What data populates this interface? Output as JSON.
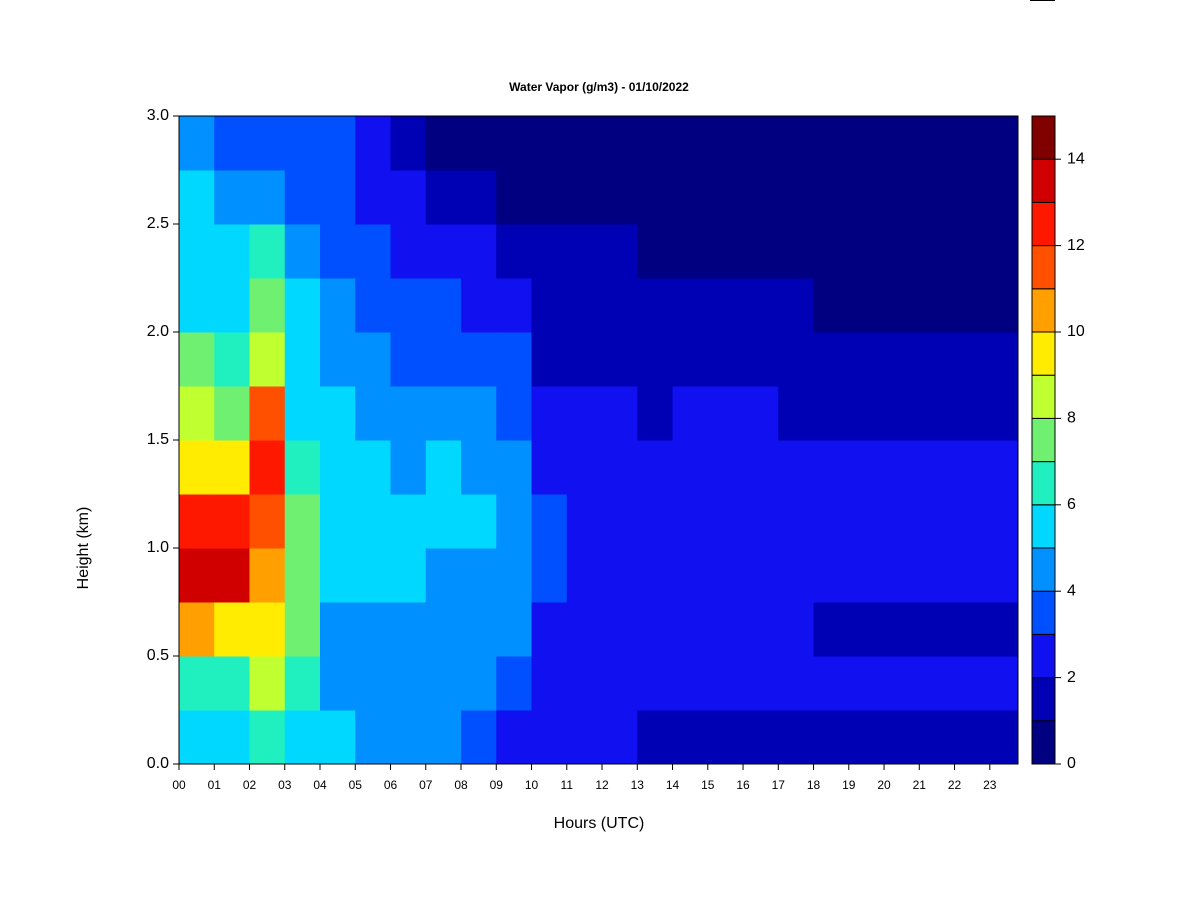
{
  "chart_data": {
    "type": "contour",
    "title": "Water Vapor (g/m3) - 01/10/2022",
    "xlabel": "Hours (UTC)",
    "ylabel": "Height (km)",
    "xlim": [
      0,
      23.8
    ],
    "ylim": [
      0,
      3
    ],
    "xticks": [
      {
        "value": 0,
        "label": "00"
      },
      {
        "value": 1,
        "label": "01"
      },
      {
        "value": 2,
        "label": "02"
      },
      {
        "value": 3,
        "label": "03"
      },
      {
        "value": 4,
        "label": "04"
      },
      {
        "value": 5,
        "label": "05"
      },
      {
        "value": 6,
        "label": "06"
      },
      {
        "value": 7,
        "label": "07"
      },
      {
        "value": 8,
        "label": "08"
      },
      {
        "value": 9,
        "label": "09"
      },
      {
        "value": 10,
        "label": "10"
      },
      {
        "value": 11,
        "label": "11"
      },
      {
        "value": 12,
        "label": "12"
      },
      {
        "value": 13,
        "label": "13"
      },
      {
        "value": 14,
        "label": "14"
      },
      {
        "value": 15,
        "label": "15"
      },
      {
        "value": 16,
        "label": "16"
      },
      {
        "value": 17,
        "label": "17"
      },
      {
        "value": 18,
        "label": "18"
      },
      {
        "value": 19,
        "label": "19"
      },
      {
        "value": 20,
        "label": "20"
      },
      {
        "value": 21,
        "label": "21"
      },
      {
        "value": 22,
        "label": "22"
      },
      {
        "value": 23,
        "label": "23"
      }
    ],
    "yticks": [
      {
        "value": 0,
        "label": "0.0"
      },
      0.5,
      {
        "value": 1,
        "label": "1.0"
      },
      1.5,
      {
        "value": 2,
        "label": "2.0"
      },
      2.5,
      {
        "value": 3,
        "label": "3.0"
      }
    ],
    "x": [
      0,
      1,
      2,
      3,
      4,
      5,
      6,
      7,
      8,
      9,
      10,
      11,
      12,
      13,
      14,
      15,
      16,
      17,
      18,
      19,
      20,
      21,
      22,
      23
    ],
    "y": [
      0,
      0.25,
      0.5,
      0.75,
      1,
      1.25,
      1.5,
      1.75,
      2,
      2.25,
      2.5,
      2.75
    ],
    "z": [
      [
        5.5,
        6.5,
        10.5,
        13.5,
        12.5,
        9.5,
        8.5,
        7.5,
        5.5,
        5.5,
        5.5,
        4.5
      ],
      [
        5.5,
        6.5,
        9.5,
        13.5,
        12.5,
        9.5,
        7.5,
        6.5,
        5.5,
        5.5,
        4.5,
        3.5
      ],
      [
        6.5,
        8.5,
        9.5,
        10.5,
        11.5,
        12.5,
        11.5,
        8.5,
        7.5,
        6.5,
        4.5,
        3.5
      ],
      [
        5.5,
        6.5,
        7.5,
        7.5,
        7.5,
        6.5,
        5.5,
        5.5,
        5.5,
        4.5,
        3.5,
        3.5
      ],
      [
        5.5,
        4.5,
        4.5,
        5.5,
        5.5,
        5.5,
        5.5,
        4.5,
        4.5,
        3.5,
        3.5,
        3.5
      ],
      [
        4.5,
        4.5,
        4.5,
        5.5,
        5.5,
        5.5,
        4.5,
        4.5,
        3.5,
        3.5,
        2.5,
        2.5
      ],
      [
        4.5,
        4.5,
        4.5,
        5.5,
        5.5,
        4.5,
        4.5,
        3.5,
        3.5,
        2.5,
        2.5,
        1.5
      ],
      [
        4.5,
        4.5,
        4.5,
        4.5,
        5.5,
        5.5,
        4.5,
        3.5,
        3.5,
        2.5,
        1.5,
        0.5
      ],
      [
        3.5,
        4.5,
        4.5,
        4.5,
        5.5,
        4.5,
        4.5,
        3.5,
        2.5,
        2.5,
        1.5,
        0.5
      ],
      [
        2.5,
        3.5,
        4.5,
        4.5,
        4.5,
        4.5,
        3.5,
        3.5,
        2.5,
        1.5,
        0.5,
        0.5
      ],
      [
        2.5,
        2.5,
        2.5,
        3.5,
        3.5,
        2.5,
        2.5,
        1.5,
        1.5,
        1.5,
        0.5,
        0.5
      ],
      [
        2.5,
        2.5,
        2.5,
        2.5,
        2.5,
        2.5,
        2.5,
        1.5,
        1.5,
        1.5,
        0.5,
        0.5
      ],
      [
        2.5,
        2.5,
        2.5,
        2.5,
        2.5,
        2.5,
        2.5,
        1.5,
        1.5,
        1.5,
        0.5,
        0.5
      ],
      [
        1.5,
        2.5,
        2.5,
        2.5,
        2.5,
        2.5,
        1.5,
        1.5,
        1.5,
        0.5,
        0.5,
        0.5
      ],
      [
        1.5,
        2.5,
        2.5,
        2.5,
        2.5,
        2.5,
        2.5,
        1.5,
        1.5,
        0.5,
        0.5,
        0.5
      ],
      [
        1.5,
        2.5,
        2.5,
        2.5,
        2.5,
        2.5,
        2.5,
        1.5,
        1.5,
        0.5,
        0.5,
        0.5
      ],
      [
        1.5,
        2.5,
        2.5,
        2.5,
        2.5,
        2.5,
        2.5,
        1.5,
        1.5,
        0.5,
        0.5,
        0.5
      ],
      [
        1.5,
        2.5,
        2.5,
        2.5,
        2.5,
        2.5,
        1.5,
        1.5,
        1.5,
        0.5,
        0.5,
        0.5
      ],
      [
        1.5,
        2.5,
        1.5,
        2.5,
        2.5,
        2.5,
        1.5,
        1.5,
        0.5,
        0.5,
        0.5,
        0.5
      ],
      [
        1.5,
        2.5,
        1.5,
        2.5,
        2.5,
        2.5,
        1.5,
        1.5,
        0.5,
        0.5,
        0.5,
        0.5
      ],
      [
        1.5,
        2.5,
        1.5,
        2.5,
        2.5,
        2.5,
        1.5,
        1.5,
        0.5,
        0.5,
        0.5,
        0.5
      ],
      [
        1.5,
        2.5,
        1.5,
        2.5,
        2.5,
        2.5,
        1.5,
        1.5,
        0.5,
        0.5,
        0.5,
        0.5
      ],
      [
        1.5,
        2.5,
        1.5,
        2.5,
        2.5,
        2.5,
        1.5,
        1.5,
        0.5,
        0.5,
        0.5,
        0.5
      ],
      [
        1.5,
        2.5,
        1.5,
        2.5,
        2.5,
        2.5,
        1.5,
        1.5,
        0.5,
        0.5,
        0.5,
        0.5
      ]
    ],
    "colorbar": {
      "levels": [
        0,
        1,
        2,
        3,
        4,
        5,
        6,
        7,
        8,
        9,
        10,
        11,
        12,
        13,
        14,
        15
      ],
      "colors": [
        "#000080",
        "#0000b4",
        "#1010f0",
        "#0050ff",
        "#0090ff",
        "#00d8ff",
        "#20f0c0",
        "#70f070",
        "#c0ff30",
        "#ffec00",
        "#ffa000",
        "#ff5000",
        "#ff1800",
        "#d00000",
        "#800000"
      ],
      "ticks": [
        0,
        2,
        4,
        6,
        8,
        10,
        12,
        14
      ]
    }
  }
}
